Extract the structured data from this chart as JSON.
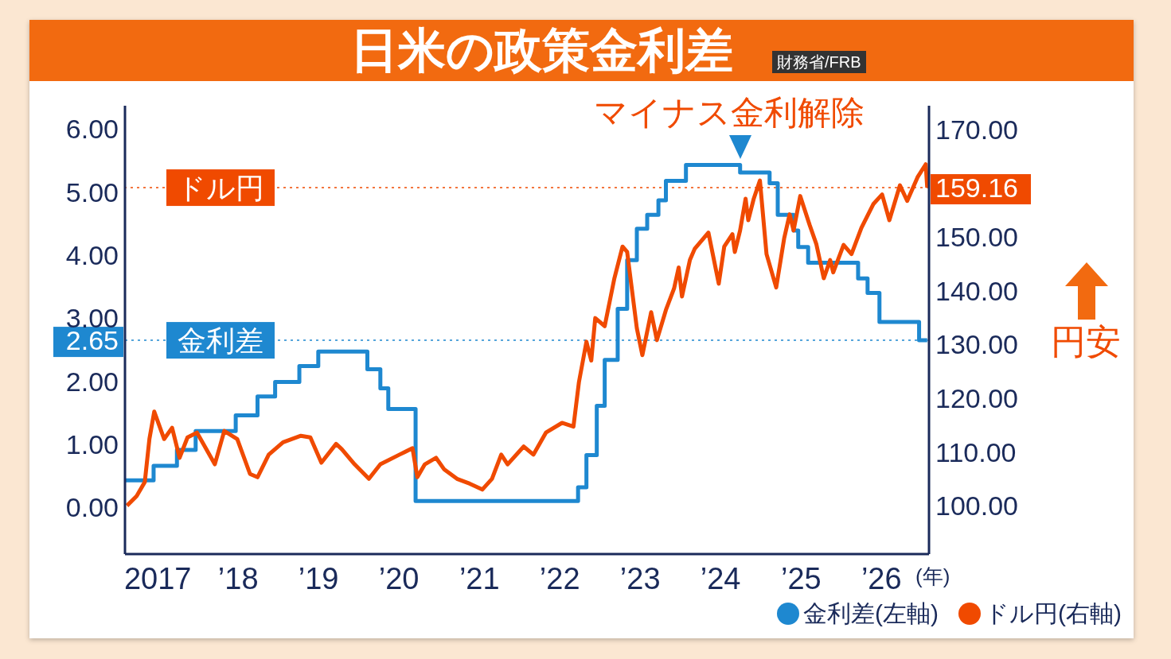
{
  "chart_data": {
    "type": "line",
    "title": "日米の政策金利差",
    "xlabel": "(年)",
    "annotations": [
      "財務省/FRB",
      "マイナス金利解除",
      "円安"
    ],
    "xlim": [
      "2016-07-07",
      "2026-07-07"
    ],
    "xticks": [
      {
        "value": "2017-01-01",
        "label": "2017"
      },
      {
        "value": "2018-01-01",
        "label": "’18"
      },
      {
        "value": "2019-01-01",
        "label": "’19"
      },
      {
        "value": "2020-01-01",
        "label": "’20"
      },
      {
        "value": "2021-01-01",
        "label": "’21"
      },
      {
        "value": "2022-01-01",
        "label": "’22"
      },
      {
        "value": "2023-01-01",
        "label": "’23"
      },
      {
        "value": "2024-01-01",
        "label": "’24"
      },
      {
        "value": "2025-01-01",
        "label": "’25"
      },
      {
        "value": "2026-01-01",
        "label": "’26"
      }
    ],
    "ylim": [
      -0.74,
      6.37
    ],
    "yticks": [
      {
        "value": 0,
        "label": "0.00"
      },
      {
        "value": 1,
        "label": "1.00"
      },
      {
        "value": 2,
        "label": "2.00"
      },
      {
        "value": 2.65,
        "label": "2.65"
      },
      {
        "value": 3,
        "label": "3.00"
      },
      {
        "value": 4,
        "label": "4.00"
      },
      {
        "value": 5,
        "label": "5.00"
      },
      {
        "value": 6,
        "label": "6.00"
      }
    ],
    "y2lim": [
      91,
      174.4
    ],
    "y2ticks": [
      {
        "value": 100,
        "label": "100.00"
      },
      {
        "value": 110,
        "label": "110.00"
      },
      {
        "value": 120,
        "label": "120.00"
      },
      {
        "value": 130,
        "label": "130.00"
      },
      {
        "value": 140,
        "label": "140.00"
      },
      {
        "value": 150,
        "label": "150.00"
      },
      {
        "value": 159.16,
        "label": "159.16"
      },
      {
        "value": 170,
        "label": "170.00"
      }
    ],
    "ref_lines": [
      {
        "axis": "y",
        "value": 2.65,
        "label": "金利差",
        "color": "#1e88d0",
        "line_style": "dotted"
      },
      {
        "axis": "y2",
        "value": 159.16,
        "label": "ドル円",
        "color": "#f04a00",
        "line_style": "dotted"
      }
    ],
    "legend": "bottom right",
    "series": [
      {
        "name": "金利差(左軸)",
        "type": "step",
        "color": "#1e88d0",
        "x": [
          "2016-07-10",
          "2016-11-14",
          "2017-02-28",
          "2017-05-24",
          "2017-11-22",
          "2018-03-01",
          "2018-05-20",
          "2018-09-07",
          "2018-12-02",
          "2019-07-13",
          "2019-09-10",
          "2019-10-16",
          "2020-02-17",
          "2022-02-24",
          "2022-04-03",
          "2022-05-20",
          "2022-06-25",
          "2022-08-23",
          "2022-10-05",
          "2022-11-18",
          "2023-01-04",
          "2023-02-24",
          "2023-03-30",
          "2023-06-29",
          "2024-03-01",
          "2024-07-13",
          "2024-08-19",
          "2024-10-30",
          "2024-11-20",
          "2025-01-04",
          "2025-08-19",
          "2025-10-01",
          "2025-11-24",
          "2026-05-23",
          "2026-06-29"
        ],
        "values": [
          0.43,
          0.66,
          0.91,
          1.21,
          1.46,
          1.76,
          1.99,
          2.24,
          2.47,
          2.19,
          1.89,
          1.56,
          0.1,
          0.32,
          0.83,
          1.61,
          2.34,
          3.15,
          3.92,
          4.42,
          4.64,
          4.87,
          5.18,
          5.43,
          5.31,
          5.14,
          4.64,
          4.39,
          4.13,
          3.88,
          3.63,
          3.4,
          2.94,
          2.65,
          2.65
        ]
      },
      {
        "name": "ドル円(右軸)",
        "axis": "y2",
        "color": "#f04a00",
        "x": [
          "2016-07-16",
          "2016-08-29",
          "2016-10-05",
          "2016-10-26",
          "2016-11-17",
          "2017-01-01",
          "2017-02-06",
          "2017-03-12",
          "2017-04-17",
          "2017-05-30",
          "2017-08-19",
          "2017-10-01",
          "2017-11-29",
          "2018-01-26",
          "2018-03-01",
          "2018-04-21",
          "2018-06-25",
          "2018-09-14",
          "2018-10-27",
          "2018-12-16",
          "2019-02-21",
          "2019-03-19",
          "2019-05-16",
          "2019-07-20",
          "2019-09-10",
          "2019-12-06",
          "2020-02-03",
          "2020-02-25",
          "2020-03-30",
          "2020-05-20",
          "2020-06-25",
          "2020-08-23",
          "2020-10-20",
          "2020-12-16",
          "2021-01-29",
          "2021-03-12",
          "2021-04-10",
          "2021-06-22",
          "2021-08-05",
          "2021-10-01",
          "2021-12-13",
          "2022-02-03",
          "2022-02-28",
          "2022-04-03",
          "2022-04-25",
          "2022-05-13",
          "2022-06-25",
          "2022-08-08",
          "2022-09-14",
          "2022-10-05",
          "2022-11-18",
          "2022-12-13",
          "2023-01-22",
          "2023-02-17",
          "2023-03-30",
          "2023-05-06",
          "2023-05-27",
          "2023-06-11",
          "2023-07-17",
          "2023-08-08",
          "2023-10-09",
          "2023-11-25",
          "2023-12-20",
          "2024-01-26",
          "2024-02-06",
          "2024-03-01",
          "2024-03-26",
          "2024-04-07",
          "2024-05-02",
          "2024-05-30",
          "2024-06-29",
          "2024-08-12",
          "2024-09-17",
          "2024-10-12",
          "2024-10-30",
          "2024-11-29",
          "2025-01-11",
          "2025-02-10",
          "2025-03-16",
          "2025-04-14",
          "2025-04-28",
          "2025-06-14",
          "2025-07-20",
          "2025-09-03",
          "2025-10-27",
          "2025-12-06",
          "2026-01-08",
          "2026-02-25",
          "2026-03-30",
          "2026-05-16",
          "2026-06-22",
          "2026-06-29"
        ],
        "values": [
          100,
          101.8,
          104.4,
          112.4,
          117.5,
          112.4,
          114.5,
          108.9,
          112.7,
          113.6,
          107.7,
          113.9,
          112.4,
          105.9,
          105.3,
          109.5,
          111.8,
          113,
          112.7,
          108,
          111.5,
          110.5,
          107.7,
          105,
          107.7,
          109.5,
          110.7,
          105.3,
          107.7,
          108.9,
          106.8,
          105,
          104.1,
          103,
          105,
          109.5,
          107.7,
          111,
          109.5,
          113.6,
          115.4,
          114.7,
          123,
          130.5,
          127,
          134.9,
          133.4,
          142.3,
          148.2,
          147.2,
          133,
          128,
          136,
          130.8,
          136.4,
          140.4,
          144.3,
          138.9,
          145.7,
          147.8,
          150.8,
          141.3,
          148.2,
          150.5,
          147.2,
          151.2,
          157.1,
          153.1,
          157.1,
          160.5,
          146.8,
          140.6,
          149.7,
          154.2,
          151.2,
          157.6,
          152.2,
          148.7,
          142.3,
          145.7,
          143.4,
          148.5,
          146.8,
          151.7,
          156.1,
          157.9,
          153.1,
          159.6,
          156.7,
          161.1,
          163.5,
          159.16
        ]
      }
    ]
  }
}
